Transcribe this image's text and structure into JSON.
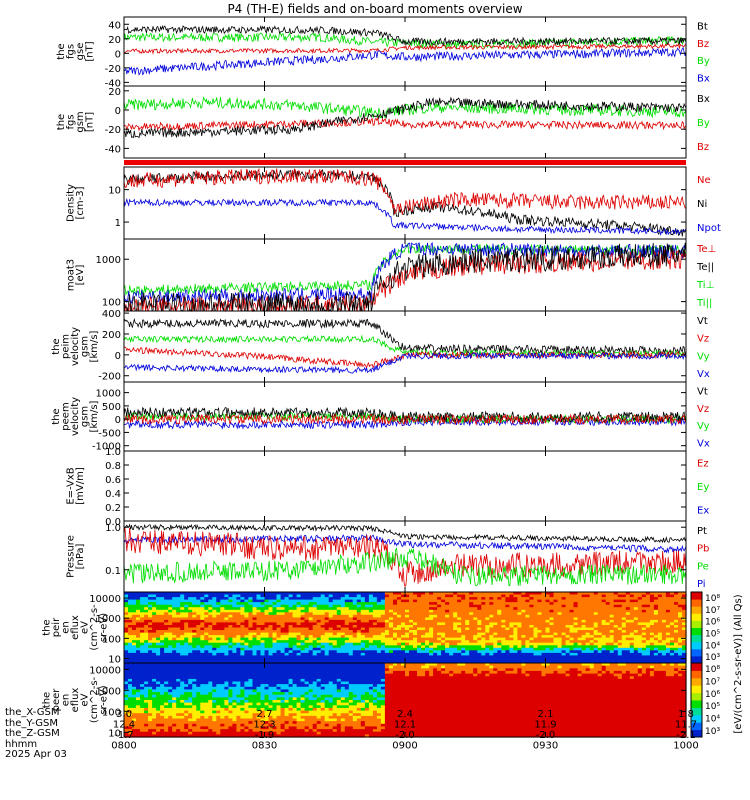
{
  "title": "P4 (TH-E) fields and on-board moments overview",
  "colors": {
    "black": "#000000",
    "red": "#dd0000",
    "green": "#00dd00",
    "blue": "#0000dd",
    "cyan": "#00ccff"
  },
  "chart_data": [
    {
      "type": "line",
      "ylabel": [
        "the",
        "fgs",
        "gse",
        "[nT]"
      ],
      "ylim": [
        -45,
        50
      ],
      "ticks": [
        {
          "v": 40,
          "t": "40"
        },
        {
          "v": 20,
          "t": "20"
        },
        {
          "v": 0,
          "t": "0"
        },
        {
          "v": -20,
          "t": "-20"
        },
        {
          "v": -40,
          "t": "-40"
        }
      ],
      "legend": [
        {
          "name": "Bt",
          "color": "#000000"
        },
        {
          "name": "Bz",
          "color": "#dd0000"
        },
        {
          "name": "By",
          "color": "#00dd00"
        },
        {
          "name": "Bx",
          "color": "#0000dd"
        }
      ],
      "series": [
        {
          "color": "#00dd00",
          "noise": 6,
          "pts": [
            [
              0,
              22
            ],
            [
              0.35,
              22
            ],
            [
              0.45,
              15
            ],
            [
              0.6,
              12
            ],
            [
              1,
              18
            ]
          ]
        },
        {
          "color": "#dd0000",
          "noise": 3,
          "pts": [
            [
              0,
              3
            ],
            [
              0.45,
              4
            ],
            [
              0.5,
              8
            ],
            [
              1,
              10
            ]
          ]
        },
        {
          "color": "#0000dd",
          "noise": 6,
          "pts": [
            [
              0,
              -25
            ],
            [
              0.2,
              -15
            ],
            [
              0.35,
              -8
            ],
            [
              0.45,
              -2
            ],
            [
              0.5,
              -5
            ],
            [
              1,
              2
            ]
          ]
        },
        {
          "color": "#000000",
          "noise": 5,
          "pts": [
            [
              0,
              33
            ],
            [
              0.35,
              32
            ],
            [
              0.45,
              28
            ],
            [
              0.5,
              16
            ],
            [
              1,
              17
            ]
          ]
        }
      ]
    },
    {
      "type": "line",
      "ylabel": [
        "the",
        "fgs",
        "gsm",
        "[nT]"
      ],
      "ylim": [
        -50,
        25
      ],
      "ticks": [
        {
          "v": 20,
          "t": "20"
        },
        {
          "v": 0,
          "t": "0"
        },
        {
          "v": -20,
          "t": "-20"
        },
        {
          "v": -40,
          "t": "-40"
        }
      ],
      "legend": [
        {
          "name": "Bx",
          "color": "#000000"
        },
        {
          "name": "By",
          "color": "#00dd00"
        },
        {
          "name": "Bz",
          "color": "#dd0000"
        }
      ],
      "series": [
        {
          "color": "#00dd00",
          "noise": 6,
          "pts": [
            [
              0,
              5
            ],
            [
              0.15,
              8
            ],
            [
              0.3,
              5
            ],
            [
              0.45,
              -3
            ],
            [
              0.55,
              3
            ],
            [
              1,
              -2
            ]
          ]
        },
        {
          "color": "#dd0000",
          "noise": 4,
          "pts": [
            [
              0,
              -18
            ],
            [
              0.4,
              -13
            ],
            [
              0.45,
              -12
            ],
            [
              0.5,
              -15
            ],
            [
              1,
              -16
            ]
          ]
        },
        {
          "color": "#000000",
          "noise": 5,
          "pts": [
            [
              0,
              -25
            ],
            [
              0.3,
              -20
            ],
            [
              0.45,
              -5
            ],
            [
              0.55,
              8
            ],
            [
              1,
              2
            ]
          ]
        }
      ]
    },
    {
      "type": "flagbar"
    },
    {
      "type": "line",
      "ylabel": [
        "Density",
        "[cm-3]"
      ],
      "log": true,
      "ylim": [
        0.3,
        50
      ],
      "ticks": [
        {
          "v": 10,
          "t": "10"
        },
        {
          "v": 1,
          "t": "1"
        }
      ],
      "legend": [
        {
          "name": "Ne",
          "color": "#dd0000"
        },
        {
          "name": "Ni",
          "color": "#000000"
        },
        {
          "name": "Npot",
          "color": "#0000dd"
        }
      ],
      "series": [
        {
          "color": "#000000",
          "noise": 0.08,
          "pts": [
            [
              0,
              20
            ],
            [
              0.3,
              30
            ],
            [
              0.44,
              25
            ],
            [
              0.48,
              2
            ],
            [
              0.55,
              3
            ],
            [
              0.7,
              1.2
            ],
            [
              1,
              0.5
            ]
          ]
        },
        {
          "color": "#dd0000",
          "noise": 0.12,
          "pts": [
            [
              0,
              18
            ],
            [
              0.3,
              28
            ],
            [
              0.44,
              22
            ],
            [
              0.48,
              2.5
            ],
            [
              0.6,
              5
            ],
            [
              0.8,
              4
            ],
            [
              1,
              4
            ]
          ]
        },
        {
          "color": "#0000dd",
          "noise": 0.05,
          "pts": [
            [
              0,
              4
            ],
            [
              0.44,
              4
            ],
            [
              0.48,
              0.8
            ],
            [
              0.7,
              0.6
            ],
            [
              1,
              0.5
            ]
          ]
        }
      ]
    },
    {
      "type": "line",
      "ylabel": [
        "moat3",
        "[eV]"
      ],
      "log": true,
      "ylim": [
        60,
        3000
      ],
      "ticks": [
        {
          "v": 1000,
          "t": "1000"
        },
        {
          "v": 100,
          "t": "100"
        }
      ],
      "legend": [
        {
          "name": "Te⊥",
          "color": "#dd0000"
        },
        {
          "name": "Te||",
          "color": "#000000"
        },
        {
          "name": "Ti⊥",
          "color": "#00dd00"
        },
        {
          "name": "Ti||",
          "color": "#00dd00"
        }
      ],
      "series": [
        {
          "color": "#00dd00",
          "noise": 0.06,
          "pts": [
            [
              0,
              180
            ],
            [
              0.44,
              250
            ],
            [
              0.5,
              1800
            ],
            [
              1,
              1600
            ]
          ]
        },
        {
          "color": "#0000dd",
          "noise": 0.08,
          "pts": [
            [
              0,
              130
            ],
            [
              0.44,
              150
            ],
            [
              0.5,
              1800
            ],
            [
              1,
              1500
            ]
          ]
        },
        {
          "color": "#dd0000",
          "noise": 0.12,
          "pts": [
            [
              0,
              75
            ],
            [
              0.44,
              80
            ],
            [
              0.5,
              400
            ],
            [
              0.6,
              700
            ],
            [
              1,
              1000
            ]
          ]
        },
        {
          "color": "#000000",
          "noise": 0.15,
          "pts": [
            [
              0,
              80
            ],
            [
              0.44,
              90
            ],
            [
              0.5,
              600
            ],
            [
              0.6,
              900
            ],
            [
              1,
              1300
            ]
          ]
        }
      ]
    },
    {
      "type": "line",
      "ylabel": [
        "the",
        "peim",
        "velocity",
        "gsm",
        "[km/s]"
      ],
      "ylim": [
        -260,
        420
      ],
      "ticks": [
        {
          "v": 400,
          "t": "400"
        },
        {
          "v": 200,
          "t": "200"
        },
        {
          "v": 0,
          "t": "0"
        },
        {
          "v": -200,
          "t": "-200"
        }
      ],
      "legend": [
        {
          "name": "Vt",
          "color": "#000000"
        },
        {
          "name": "Vz",
          "color": "#dd0000"
        },
        {
          "name": "Vy",
          "color": "#00dd00"
        },
        {
          "name": "Vx",
          "color": "#0000dd"
        }
      ],
      "series": [
        {
          "color": "#000000",
          "noise": 40,
          "pts": [
            [
              0,
              300
            ],
            [
              0.44,
              300
            ],
            [
              0.5,
              60
            ],
            [
              1,
              40
            ]
          ]
        },
        {
          "color": "#00dd00",
          "noise": 30,
          "pts": [
            [
              0,
              150
            ],
            [
              0.44,
              150
            ],
            [
              0.5,
              20
            ],
            [
              1,
              10
            ]
          ]
        },
        {
          "color": "#dd0000",
          "noise": 30,
          "pts": [
            [
              0,
              50
            ],
            [
              0.2,
              0
            ],
            [
              0.35,
              -60
            ],
            [
              0.44,
              -100
            ],
            [
              0.5,
              0
            ],
            [
              1,
              0
            ]
          ]
        },
        {
          "color": "#0000dd",
          "noise": 30,
          "pts": [
            [
              0,
              -120
            ],
            [
              0.44,
              -150
            ],
            [
              0.5,
              -10
            ],
            [
              1,
              -10
            ]
          ]
        }
      ]
    },
    {
      "type": "line",
      "ylabel": [
        "the",
        "peem",
        "velocity",
        "gsm",
        "[km/s]"
      ],
      "ylim": [
        -1200,
        1400
      ],
      "ticks": [
        {
          "v": 1000,
          "t": "1000"
        },
        {
          "v": 500,
          "t": "500"
        },
        {
          "v": 0,
          "t": "0"
        },
        {
          "v": -500,
          "t": "-500"
        },
        {
          "v": -1000,
          "t": "-1000"
        }
      ],
      "legend": [
        {
          "name": "Vt",
          "color": "#000000"
        },
        {
          "name": "Vz",
          "color": "#dd0000"
        },
        {
          "name": "Vy",
          "color": "#00dd00"
        },
        {
          "name": "Vx",
          "color": "#0000dd"
        }
      ],
      "series": [
        {
          "color": "#0000dd",
          "noise": 150,
          "pts": [
            [
              0,
              -200
            ],
            [
              0.44,
              -200
            ],
            [
              0.5,
              -100
            ],
            [
              1,
              -80
            ]
          ]
        },
        {
          "color": "#00dd00",
          "noise": 150,
          "pts": [
            [
              0,
              100
            ],
            [
              0.44,
              100
            ],
            [
              0.5,
              0
            ],
            [
              1,
              0
            ]
          ]
        },
        {
          "color": "#000000",
          "noise": 200,
          "pts": [
            [
              0,
              250
            ],
            [
              0.44,
              250
            ],
            [
              0.5,
              80
            ],
            [
              1,
              80
            ]
          ]
        },
        {
          "color": "#dd0000",
          "noise": 180,
          "pts": [
            [
              0,
              0
            ],
            [
              0.44,
              0
            ],
            [
              0.5,
              -20
            ],
            [
              1,
              0
            ]
          ]
        }
      ]
    },
    {
      "type": "line",
      "ylabel": [
        "E=-VxB",
        "[mV/m]"
      ],
      "ylim": [
        0,
        1
      ],
      "ticks": [
        {
          "v": 1,
          "t": "1.0"
        },
        {
          "v": 0.8,
          "t": "0.8"
        },
        {
          "v": 0.6,
          "t": "0.6"
        },
        {
          "v": 0.4,
          "t": "0.4"
        },
        {
          "v": 0.2,
          "t": "0.2"
        },
        {
          "v": 0,
          "t": "0.0"
        }
      ],
      "legend": [
        {
          "name": "Ez",
          "color": "#dd0000"
        },
        {
          "name": "Ey",
          "color": "#00dd00"
        },
        {
          "name": "Ex",
          "color": "#0000dd"
        }
      ],
      "series": []
    },
    {
      "type": "line",
      "ylabel": [
        "Pressure",
        "[nPa]"
      ],
      "log": true,
      "ylim": [
        0.03,
        1.4
      ],
      "ticks": [
        {
          "v": 1,
          "t": "1.0"
        },
        {
          "v": 0.1,
          "t": "0.1"
        }
      ],
      "legend": [
        {
          "name": "Pt",
          "color": "#000000"
        },
        {
          "name": "Pb",
          "color": "#dd0000"
        },
        {
          "name": "Pe",
          "color": "#00dd00"
        },
        {
          "name": "Pi",
          "color": "#0000dd"
        }
      ],
      "series": [
        {
          "color": "#000000",
          "noise": 0.03,
          "pts": [
            [
              0,
              1.0
            ],
            [
              0.44,
              0.95
            ],
            [
              0.5,
              0.6
            ],
            [
              1,
              0.5
            ]
          ]
        },
        {
          "color": "#0000dd",
          "noise": 0.04,
          "pts": [
            [
              0,
              0.5
            ],
            [
              0.44,
              0.55
            ],
            [
              0.5,
              0.4
            ],
            [
              1,
              0.3
            ]
          ]
        },
        {
          "color": "#dd0000",
          "noise": 0.15,
          "pts": [
            [
              0,
              0.5
            ],
            [
              0.3,
              0.3
            ],
            [
              0.44,
              0.35
            ],
            [
              0.5,
              0.08
            ],
            [
              0.6,
              0.12
            ],
            [
              1,
              0.15
            ]
          ]
        },
        {
          "color": "#00dd00",
          "noise": 0.12,
          "pts": [
            [
              0,
              0.08
            ],
            [
              0.3,
              0.1
            ],
            [
              0.44,
              0.15
            ],
            [
              0.5,
              0.2
            ],
            [
              0.6,
              0.07
            ],
            [
              1,
              0.08
            ]
          ]
        }
      ]
    },
    {
      "type": "heatmap",
      "ylabel": [
        "the",
        "peir",
        "en",
        "eflux",
        "eV",
        "(cm^2-s-",
        "sr-eV)"
      ],
      "log": true,
      "ylim": [
        6,
        20000
      ],
      "ticks": [
        {
          "v": 10000,
          "t": "10000"
        },
        {
          "v": 1000,
          "t": "1000"
        },
        {
          "v": 100,
          "t": "100"
        },
        {
          "v": 10,
          "t": "10"
        }
      ]
    },
    {
      "type": "heatmap",
      "ylabel": [
        "the",
        "peer",
        "en",
        "eflux",
        "eV",
        "(cm^2-s-",
        "sr-eV)"
      ],
      "log": true,
      "ylim": [
        6,
        20000
      ],
      "ticks": [
        {
          "v": 10000,
          "t": "10000"
        },
        {
          "v": 1000,
          "t": "1000"
        },
        {
          "v": 100,
          "t": "100"
        },
        {
          "v": 10,
          "t": "10"
        }
      ]
    }
  ],
  "colorbar": {
    "upper_ticks": [
      "10⁸",
      "10⁷",
      "10⁶",
      "10⁵",
      "10⁴",
      "10³"
    ],
    "lower_ticks": [
      "10⁸",
      "10⁷",
      "10⁶",
      "10⁵",
      "10⁴",
      "10³"
    ],
    "label": "[eV/(cm^2-s-sr-eV)] (All Qs)"
  },
  "xaxis": {
    "rows": [
      {
        "label": "the_X-GSM",
        "values": [
          "3.0",
          "2.7",
          "2.4",
          "2.1",
          "1.8"
        ]
      },
      {
        "label": "the_Y-GSM",
        "values": [
          "12.4",
          "12.3",
          "12.1",
          "11.9",
          "11.7"
        ]
      },
      {
        "label": "the_Z-GSM",
        "values": [
          "-1.7",
          "-1.9",
          "-2.0",
          "-2.0",
          "-2.1"
        ]
      },
      {
        "label": "hhmm",
        "values": [
          "0800",
          "0830",
          "0900",
          "0930",
          "1000"
        ]
      }
    ],
    "date": "2025 Apr 03"
  }
}
